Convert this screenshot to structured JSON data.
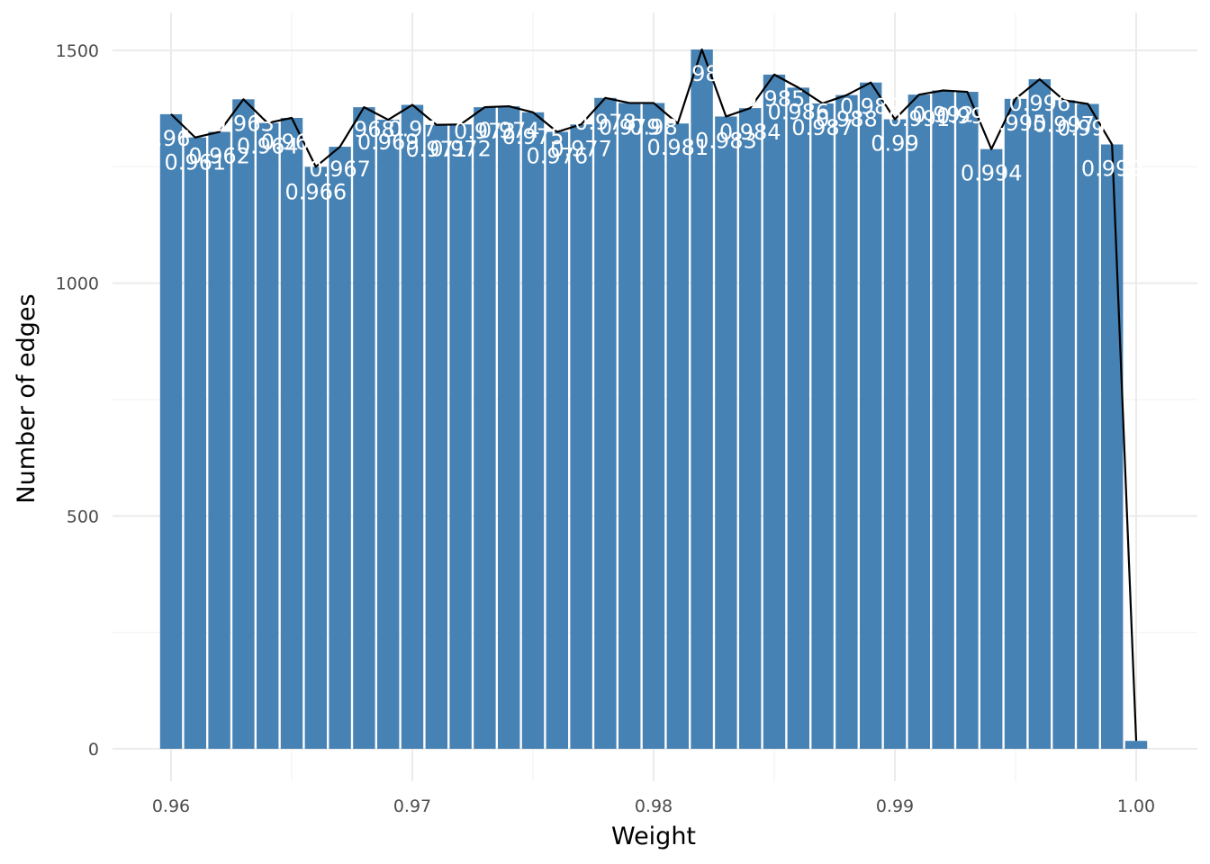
{
  "chart_data": {
    "type": "bar",
    "title": "",
    "xlabel": "Weight",
    "ylabel": "Number of edges",
    "xlim": [
      0.9575,
      1.0025
    ],
    "ylim": [
      -60,
      1530
    ],
    "x_ticks": [
      "0.96",
      "0.97",
      "0.98",
      "0.99",
      "1.00"
    ],
    "y_ticks": [
      "0",
      "500",
      "1000",
      "1500"
    ],
    "grid": true,
    "legend": "none",
    "bar_color": "#4682B4",
    "line_color": "#000000",
    "label_color": "#ffffff",
    "bin_width": 0.001,
    "x": [
      0.96,
      0.961,
      0.962,
      0.963,
      0.964,
      0.965,
      0.966,
      0.967,
      0.968,
      0.969,
      0.97,
      0.971,
      0.972,
      0.973,
      0.974,
      0.975,
      0.976,
      0.977,
      0.978,
      0.979,
      0.98,
      0.981,
      0.982,
      0.983,
      0.984,
      0.985,
      0.986,
      0.987,
      0.988,
      0.989,
      0.99,
      0.991,
      0.992,
      0.993,
      0.994,
      0.995,
      0.996,
      0.997,
      0.998,
      0.999,
      1.0
    ],
    "values": [
      1363,
      1313,
      1325,
      1395,
      1344,
      1355,
      1250,
      1293,
      1378,
      1351,
      1383,
      1340,
      1341,
      1378,
      1380,
      1367,
      1325,
      1341,
      1398,
      1387,
      1387,
      1343,
      1502,
      1358,
      1376,
      1448,
      1420,
      1386,
      1404,
      1431,
      1352,
      1405,
      1414,
      1411,
      1288,
      1396,
      1438,
      1393,
      1385,
      1298,
      17
    ],
    "labels": [
      {
        "x": 0.96,
        "text": "0.96",
        "dx": -0.0002,
        "dy": 35
      },
      {
        "x": 0.961,
        "text": "0.961",
        "dx": 0.0,
        "dy": 36
      },
      {
        "x": 0.962,
        "text": "0.962",
        "dx": 0.0,
        "dy": 35
      },
      {
        "x": 0.963,
        "text": "0.963",
        "dx": 0.0,
        "dy": 35
      },
      {
        "x": 0.964,
        "text": "0.964",
        "dx": 0.0,
        "dy": 34
      },
      {
        "x": 0.965,
        "text": "0.965",
        "dx": 0.0,
        "dy": 35
      },
      {
        "x": 0.966,
        "text": "0.966",
        "dx": 0.0,
        "dy": 36
      },
      {
        "x": 0.967,
        "text": "0.967",
        "dx": 0.0,
        "dy": 33
      },
      {
        "x": 0.968,
        "text": "0.968",
        "dx": 0.0,
        "dy": 33
      },
      {
        "x": 0.969,
        "text": "0.969",
        "dx": 0.0,
        "dy": 33
      },
      {
        "x": 0.97,
        "text": "0.97",
        "dx": 0.0,
        "dy": 35
      },
      {
        "x": 0.971,
        "text": "0.971",
        "dx": 0.0,
        "dy": 35
      },
      {
        "x": 0.972,
        "text": "0.972",
        "dx": 0.0,
        "dy": 35
      },
      {
        "x": 0.973,
        "text": "0.973",
        "dx": 0.0,
        "dy": 35
      },
      {
        "x": 0.974,
        "text": "0.974",
        "dx": 0.0,
        "dy": 35
      },
      {
        "x": 0.975,
        "text": "0.975",
        "dx": 0.0,
        "dy": 35
      },
      {
        "x": 0.976,
        "text": "0.976",
        "dx": 0.0,
        "dy": 35
      },
      {
        "x": 0.977,
        "text": "0.977",
        "dx": 0.0,
        "dy": 35
      },
      {
        "x": 0.978,
        "text": "0.978",
        "dx": 0.0,
        "dy": 35
      },
      {
        "x": 0.979,
        "text": "0.979",
        "dx": 0.0,
        "dy": 35
      },
      {
        "x": 0.98,
        "text": "0.98",
        "dx": 0.0,
        "dy": 35
      },
      {
        "x": 0.981,
        "text": "0.981",
        "dx": 0.0,
        "dy": 35
      },
      {
        "x": 0.982,
        "text": "0.982",
        "dx": 0.0,
        "dy": 35
      },
      {
        "x": 0.983,
        "text": "0.983",
        "dx": 0.0,
        "dy": 35
      },
      {
        "x": 0.984,
        "text": "0.984",
        "dx": 0.0,
        "dy": 35
      },
      {
        "x": 0.985,
        "text": "0.985",
        "dx": 0.0,
        "dy": 35
      },
      {
        "x": 0.986,
        "text": "0.986",
        "dx": 0.0,
        "dy": 35
      },
      {
        "x": 0.987,
        "text": "0.987",
        "dx": 0.0,
        "dy": 35
      },
      {
        "x": 0.988,
        "text": "0.988",
        "dx": 0.0,
        "dy": 35
      },
      {
        "x": 0.989,
        "text": "0.989",
        "dx": 0.0,
        "dy": 35
      },
      {
        "x": 0.99,
        "text": "0.99",
        "dx": 0.0,
        "dy": 35
      },
      {
        "x": 0.991,
        "text": "0.991",
        "dx": 0.0,
        "dy": 35
      },
      {
        "x": 0.992,
        "text": "0.992",
        "dx": 0.0,
        "dy": 35
      },
      {
        "x": 0.993,
        "text": "0.993",
        "dx": 0.0,
        "dy": 35
      },
      {
        "x": 0.994,
        "text": "0.994",
        "dx": 0.0,
        "dy": 35
      },
      {
        "x": 0.995,
        "text": "0.995",
        "dx": 0.0,
        "dy": 35
      },
      {
        "x": 0.996,
        "text": "0.996",
        "dx": 0.0,
        "dy": 35
      },
      {
        "x": 0.997,
        "text": "0.997",
        "dx": 0.0,
        "dy": 35
      },
      {
        "x": 0.998,
        "text": "0.998",
        "dx": 0.0,
        "dy": 35
      },
      {
        "x": 0.999,
        "text": "0.999",
        "dx": 0.0,
        "dy": 35
      }
    ]
  }
}
